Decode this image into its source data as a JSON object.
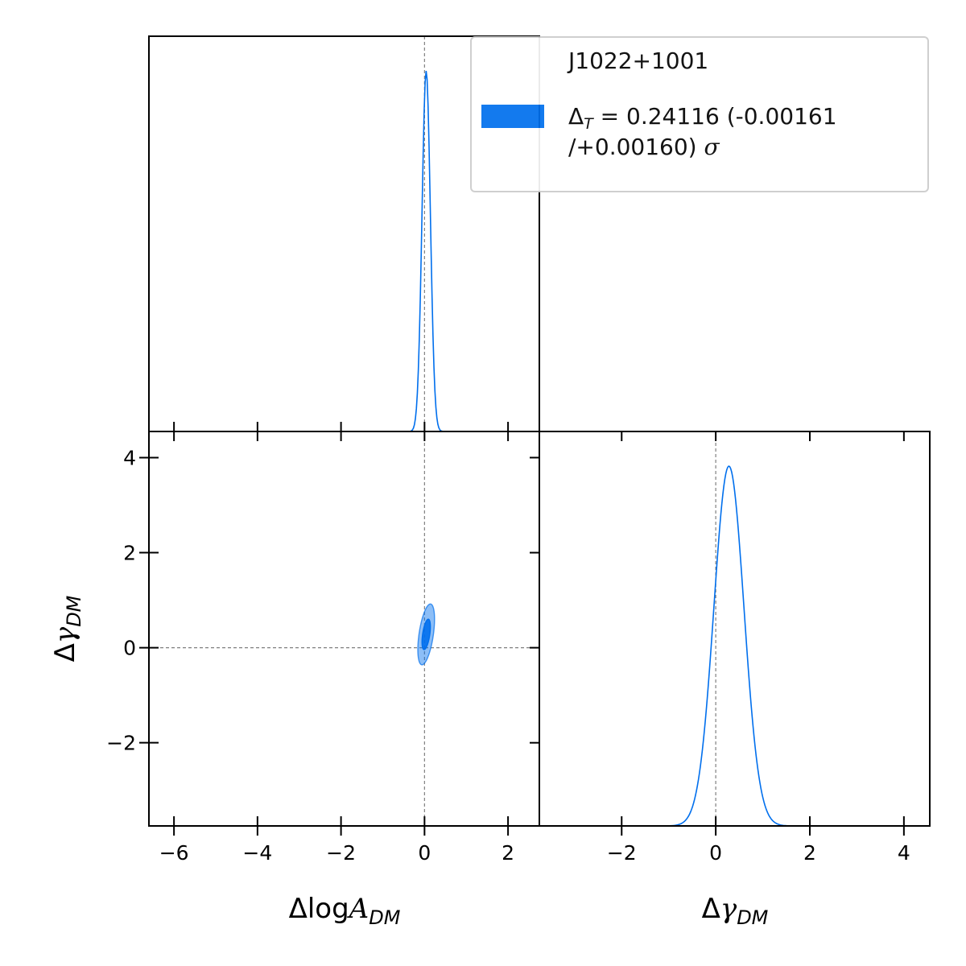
{
  "chart_data": {
    "type": "corner",
    "parameters": [
      {
        "name": "Δlog A_DM",
        "base": "Δlog",
        "symbol": "A",
        "sub": "DM",
        "range": [
          -6.6,
          2.75
        ],
        "ticks": [
          -6,
          -4,
          -2,
          0,
          2
        ],
        "tick_labels": [
          "−6",
          "−4",
          "−2",
          "0",
          "2"
        ]
      },
      {
        "name": "Δγ_DM",
        "base": "Δ",
        "symbol": "γ",
        "sub": "DM",
        "range": [
          -3.75,
          4.55
        ],
        "ticks": [
          -2,
          0,
          2,
          4
        ],
        "tick_labels": [
          "−2",
          "0",
          "2",
          "4"
        ]
      }
    ],
    "truth": [
      0,
      0
    ],
    "series": [
      {
        "name": "J1022+1001",
        "color": "#006FED",
        "marginal_1": {
          "mean": 0.04,
          "sigma": 0.1
        },
        "marginal_2": {
          "mean": 0.28,
          "sigma": 0.32
        },
        "joint": {
          "center": [
            0.04,
            0.28
          ],
          "sd": [
            0.1,
            0.32
          ],
          "rho": 0.5,
          "levels_sigma": [
            1,
            2
          ]
        }
      }
    ],
    "grid": false,
    "legend_position": "top-right"
  },
  "legend": {
    "title": "J1022+1001",
    "stat_symbol": "Δ",
    "stat_sub": "T",
    "stat_value": " = 0.24116 (-0.00161",
    "stat_line2": "/+0.00160) ",
    "stat_sigma": "σ"
  }
}
